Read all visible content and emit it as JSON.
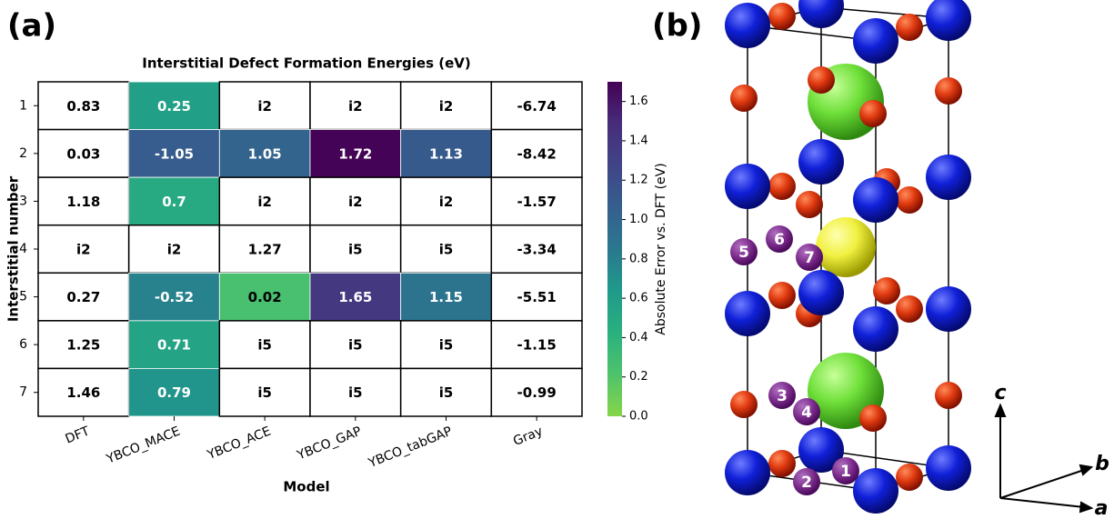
{
  "chart_data": {
    "type": "heatmap",
    "panel_label": "(a)",
    "title": "Interstitial Defect Formation Energies (eV)",
    "x_label": "Model",
    "y_label": "Interstitial number",
    "columns": [
      "DFT",
      "YBCO_MACE",
      "YBCO_ACE",
      "YBCO_GAP",
      "YBCO_tabGAP",
      "Gray"
    ],
    "rows": [
      1,
      2,
      3,
      4,
      5,
      6,
      7
    ],
    "cells": [
      [
        0.83,
        0.25,
        "i2",
        "i2",
        "i2",
        -6.74
      ],
      [
        0.03,
        -1.05,
        1.05,
        1.72,
        1.13,
        -8.42
      ],
      [
        1.18,
        0.7,
        "i2",
        "i2",
        "i2",
        -1.57
      ],
      [
        "i2",
        "i2",
        1.27,
        "i5",
        "i5",
        -3.34
      ],
      [
        0.27,
        -0.52,
        0.02,
        1.65,
        1.15,
        -5.51
      ],
      [
        1.25,
        0.71,
        "i5",
        "i5",
        "i5",
        -1.15
      ],
      [
        1.46,
        0.79,
        "i5",
        "i5",
        "i5",
        -0.99
      ]
    ],
    "errors": [
      [
        null,
        0.58,
        null,
        null,
        null,
        null
      ],
      [
        null,
        1.08,
        1.02,
        1.69,
        1.1,
        null
      ],
      [
        null,
        0.48,
        null,
        null,
        null,
        null
      ],
      [
        null,
        null,
        null,
        null,
        null,
        null
      ],
      [
        null,
        0.79,
        0.25,
        1.38,
        0.88,
        null
      ],
      [
        null,
        0.54,
        null,
        null,
        null,
        null
      ],
      [
        null,
        0.67,
        null,
        null,
        null,
        null
      ]
    ],
    "colorbar_label": "Absolute Error vs. DFT (eV)",
    "clim": [
      0,
      1.7
    ],
    "cticks": [
      {
        "value": 0,
        "label": "0.0"
      },
      0.2,
      0.4,
      0.6,
      0.8,
      {
        "value": 1,
        "label": "1.0"
      },
      1.2,
      1.4,
      1.6
    ],
    "colormap": [
      "#86d549",
      "#4ec36b",
      "#2ab07f",
      "#1f9a8a",
      "#2a788e",
      "#355f8d",
      "#414487",
      "#472c7a",
      "#440154"
    ]
  },
  "structure": {
    "panel_label": "(b)",
    "site_labels": [
      1,
      2,
      3,
      4,
      5,
      6,
      7
    ],
    "axes": [
      "c",
      "b",
      "a"
    ]
  }
}
